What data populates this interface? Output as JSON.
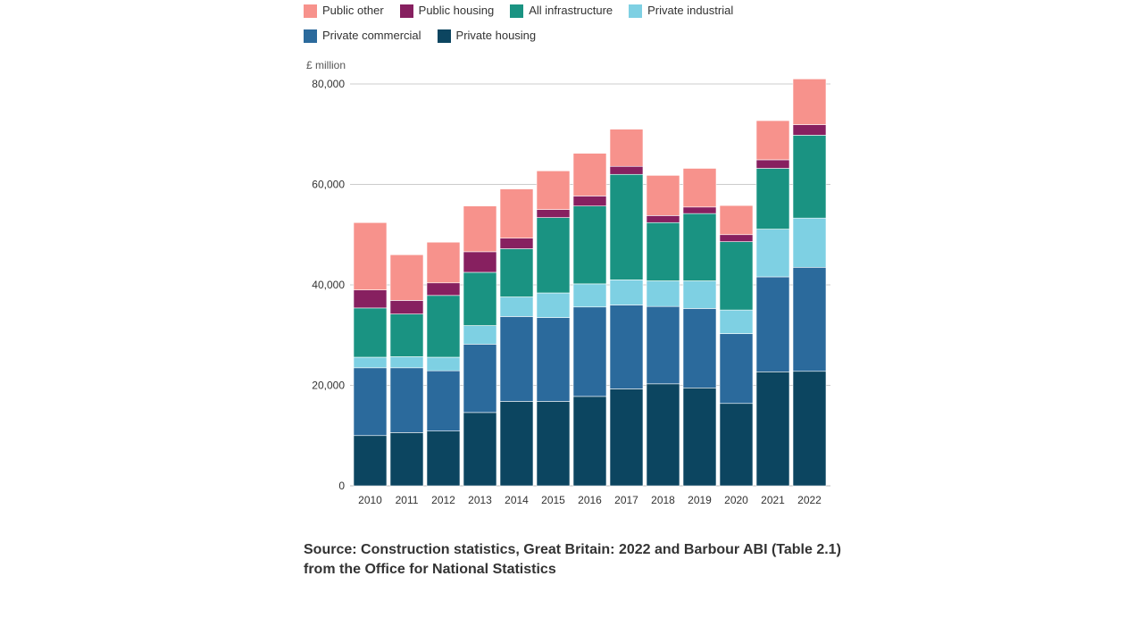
{
  "chart_data": {
    "type": "bar",
    "stacked": true,
    "unit_label": "£ million",
    "categories": [
      "2010",
      "2011",
      "2012",
      "2013",
      "2014",
      "2015",
      "2016",
      "2017",
      "2018",
      "2019",
      "2020",
      "2021",
      "2022"
    ],
    "series": [
      {
        "name": "Private housing",
        "color": "#0c4560",
        "values": [
          10000,
          10600,
          10900,
          14600,
          16800,
          16800,
          17800,
          19300,
          20300,
          19500,
          16400,
          22700,
          22800
        ]
      },
      {
        "name": "Private commercial",
        "color": "#2b6a9c",
        "values": [
          13500,
          12900,
          12000,
          13600,
          16900,
          16700,
          17800,
          16700,
          15400,
          15800,
          13900,
          18900,
          20700
        ]
      },
      {
        "name": "Private industrial",
        "color": "#7ed0e3",
        "values": [
          2100,
          2200,
          2700,
          3700,
          3900,
          4900,
          4600,
          5000,
          5100,
          5500,
          4700,
          9500,
          9800
        ]
      },
      {
        "name": "All infrastructure",
        "color": "#1a9382",
        "values": [
          9800,
          8500,
          12300,
          10600,
          9600,
          15000,
          15500,
          21000,
          11600,
          13400,
          13600,
          12100,
          16500
        ]
      },
      {
        "name": "Public housing",
        "color": "#872060",
        "values": [
          3600,
          2700,
          2500,
          4100,
          2100,
          1600,
          2000,
          1600,
          1400,
          1300,
          1400,
          1700,
          2100
        ]
      },
      {
        "name": "Public other",
        "color": "#f7928c",
        "values": [
          13400,
          9100,
          8100,
          9100,
          9800,
          7700,
          8500,
          7400,
          8000,
          7700,
          5800,
          7800,
          9100
        ]
      }
    ],
    "legend_order": [
      "Public other",
      "Public housing",
      "All infrastructure",
      "Private industrial",
      "Private commercial",
      "Private housing"
    ],
    "ylim": [
      0,
      80000
    ],
    "yticks": [
      {
        "value": 0,
        "label": "0"
      },
      {
        "value": 20000,
        "label": "20,000"
      },
      {
        "value": 40000,
        "label": "40,000"
      },
      {
        "value": 60000,
        "label": "60,000"
      },
      {
        "value": 80000,
        "label": "80,000"
      }
    ],
    "grid": true,
    "legend_position": "top"
  },
  "source": "Source: Construction statistics, Great Britain: 2022 and Barbour ABI (Table 2.1) from the Office for National Statistics"
}
